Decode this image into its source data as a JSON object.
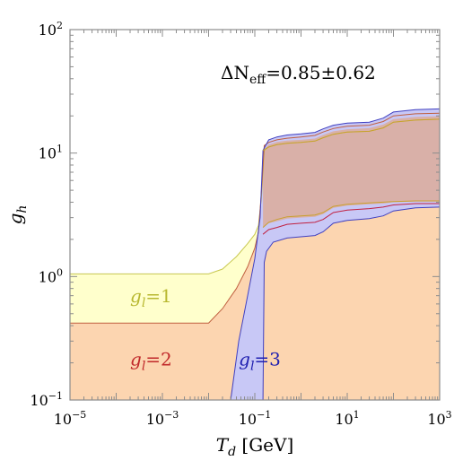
{
  "chart_data": {
    "type": "area",
    "title": "",
    "xlabel": {
      "base": "T",
      "sub": "d",
      "unit": " [GeV]"
    },
    "ylabel": {
      "base": "g",
      "sub": "h"
    },
    "x_scale": "log",
    "y_scale": "log",
    "xlim": [
      1e-05,
      1000
    ],
    "ylim": [
      0.1,
      100
    ],
    "grid": false,
    "x_ticks": [
      {
        "value": 1e-05,
        "base": "10",
        "exp": "−5"
      },
      {
        "value": 0.001,
        "base": "10",
        "exp": "−3"
      },
      {
        "value": 0.1,
        "base": "10",
        "exp": "−1"
      },
      {
        "value": 10,
        "base": "10",
        "exp": "1"
      },
      {
        "value": 1000,
        "base": "10",
        "exp": "3"
      }
    ],
    "y_ticks": [
      {
        "value": 0.1,
        "base": "10",
        "exp": "−1"
      },
      {
        "value": 1,
        "base": "10",
        "exp": "0"
      },
      {
        "value": 10,
        "base": "10",
        "exp": "1"
      },
      {
        "value": 100,
        "base": "10",
        "exp": "2"
      }
    ],
    "annotation": {
      "text": "ΔN",
      "sub": "eff",
      "rest": "=0.85±0.62",
      "x": 0.1,
      "y": 40
    },
    "series": [
      {
        "name": "g_l=1",
        "label": {
          "base": "g",
          "sub": "l",
          "rest": "=1",
          "x": 0.0002,
          "y": 0.62
        },
        "fill": "#ffffcc",
        "stroke": "#c8c850",
        "upper": [
          [
            1e-05,
            1.05
          ],
          [
            0.0001,
            1.05
          ],
          [
            0.001,
            1.05
          ],
          [
            0.01,
            1.05
          ],
          [
            0.02,
            1.15
          ],
          [
            0.04,
            1.45
          ],
          [
            0.07,
            1.85
          ],
          [
            0.1,
            2.2
          ],
          [
            0.12,
            2.6
          ],
          [
            0.14,
            4.5
          ],
          [
            0.16,
            10.5
          ],
          [
            0.2,
            11.2
          ],
          [
            0.3,
            11.7
          ],
          [
            0.5,
            12.0
          ],
          [
            1,
            12.2
          ],
          [
            2,
            12.5
          ],
          [
            3,
            13.3
          ],
          [
            5,
            14.2
          ],
          [
            10,
            14.8
          ],
          [
            30,
            15.0
          ],
          [
            60,
            16.0
          ],
          [
            100,
            17.8
          ],
          [
            300,
            18.5
          ],
          [
            1000,
            18.8
          ]
        ],
        "lower": [
          [
            1e-05,
            0.1
          ],
          [
            1000,
            0.1
          ]
        ]
      },
      {
        "name": "g_l=2",
        "label": {
          "base": "g",
          "sub": "l",
          "rest": "=2",
          "x": 0.0002,
          "y": 0.19
        },
        "fill": "#fcd5b0",
        "stroke": "#c06040",
        "upper": [
          [
            1e-05,
            0.42
          ],
          [
            0.001,
            0.42
          ],
          [
            0.01,
            0.42
          ],
          [
            0.02,
            0.55
          ],
          [
            0.04,
            0.8
          ],
          [
            0.07,
            1.2
          ],
          [
            0.1,
            1.7
          ],
          [
            0.12,
            2.3
          ],
          [
            0.14,
            5.0
          ],
          [
            0.16,
            11.5
          ],
          [
            0.2,
            12.2
          ],
          [
            0.3,
            12.8
          ],
          [
            0.5,
            13.2
          ],
          [
            1,
            13.5
          ],
          [
            2,
            13.9
          ],
          [
            3,
            14.8
          ],
          [
            5,
            15.8
          ],
          [
            10,
            16.5
          ],
          [
            30,
            16.8
          ],
          [
            60,
            18.0
          ],
          [
            100,
            20.0
          ],
          [
            300,
            20.8
          ],
          [
            1000,
            21.0
          ]
        ],
        "lower": [
          [
            1e-05,
            0.1
          ],
          [
            1000,
            0.1
          ]
        ]
      },
      {
        "name": "g_l=3",
        "label": {
          "base": "g",
          "sub": "l",
          "rest": "=3",
          "x": 0.045,
          "y": 0.19
        },
        "fill": "#c8c8f6",
        "stroke": "#4040c0",
        "upper": [
          [
            0.03,
            0.1
          ],
          [
            0.045,
            0.3
          ],
          [
            0.07,
            0.7
          ],
          [
            0.1,
            1.4
          ],
          [
            0.13,
            3.0
          ],
          [
            0.15,
            10.5
          ],
          [
            0.2,
            12.8
          ],
          [
            0.3,
            13.5
          ],
          [
            0.5,
            14.0
          ],
          [
            1,
            14.3
          ],
          [
            2,
            14.7
          ],
          [
            3,
            15.7
          ],
          [
            5,
            16.8
          ],
          [
            10,
            17.5
          ],
          [
            30,
            17.8
          ],
          [
            60,
            19.2
          ],
          [
            100,
            21.5
          ],
          [
            300,
            22.5
          ],
          [
            1000,
            22.8
          ]
        ],
        "lower": [
          [
            0.15,
            0.1
          ],
          [
            0.16,
            1.3
          ],
          [
            0.18,
            1.6
          ],
          [
            0.25,
            1.9
          ],
          [
            0.5,
            2.05
          ],
          [
            1,
            2.1
          ],
          [
            2,
            2.15
          ],
          [
            3,
            2.3
          ],
          [
            5,
            2.7
          ],
          [
            10,
            2.85
          ],
          [
            30,
            2.95
          ],
          [
            60,
            3.1
          ],
          [
            100,
            3.4
          ],
          [
            300,
            3.6
          ],
          [
            1000,
            3.65
          ]
        ]
      }
    ],
    "overlap_fill": "#d9b0a8",
    "overlap_band": {
      "upper": [
        [
          0.15,
          10.5
        ],
        [
          0.2,
          11.7
        ],
        [
          0.3,
          12.3
        ],
        [
          0.5,
          12.6
        ],
        [
          1,
          12.8
        ],
        [
          2,
          13.1
        ],
        [
          3,
          14.0
        ],
        [
          5,
          15.0
        ],
        [
          10,
          15.6
        ],
        [
          30,
          15.9
        ],
        [
          60,
          17.0
        ],
        [
          100,
          18.8
        ],
        [
          300,
          19.6
        ],
        [
          1000,
          19.9
        ]
      ],
      "lower": [
        [
          0.15,
          2.5
        ],
        [
          0.2,
          2.7
        ],
        [
          0.3,
          2.8
        ],
        [
          0.5,
          2.95
        ],
        [
          1,
          3.0
        ],
        [
          2,
          3.05
        ],
        [
          3,
          3.2
        ],
        [
          5,
          3.6
        ],
        [
          10,
          3.75
        ],
        [
          30,
          3.85
        ],
        [
          60,
          3.9
        ],
        [
          100,
          4.0
        ],
        [
          300,
          4.05
        ],
        [
          1000,
          4.05
        ]
      ]
    },
    "overlap_edges": [
      {
        "color": "#c8a030",
        "points": [
          [
            0.15,
            10.5
          ],
          [
            0.2,
            11.2
          ],
          [
            0.3,
            11.7
          ],
          [
            0.5,
            12.0
          ],
          [
            1,
            12.2
          ],
          [
            2,
            12.5
          ],
          [
            3,
            13.3
          ],
          [
            5,
            14.2
          ],
          [
            10,
            14.8
          ],
          [
            30,
            15.0
          ],
          [
            60,
            16.0
          ],
          [
            100,
            17.8
          ],
          [
            300,
            18.5
          ],
          [
            1000,
            18.8
          ]
        ]
      },
      {
        "color": "#c8a030",
        "points": [
          [
            0.15,
            2.5
          ],
          [
            0.2,
            2.75
          ],
          [
            0.3,
            2.9
          ],
          [
            0.5,
            3.05
          ],
          [
            1,
            3.1
          ],
          [
            2,
            3.15
          ],
          [
            3,
            3.3
          ],
          [
            5,
            3.7
          ],
          [
            10,
            3.85
          ],
          [
            30,
            3.95
          ],
          [
            60,
            4.0
          ],
          [
            100,
            4.05
          ],
          [
            300,
            4.1
          ],
          [
            1000,
            4.1
          ]
        ]
      },
      {
        "color": "#c02040",
        "points": [
          [
            0.15,
            2.2
          ],
          [
            0.2,
            2.4
          ],
          [
            0.3,
            2.5
          ],
          [
            0.5,
            2.65
          ],
          [
            1,
            2.7
          ],
          [
            2,
            2.75
          ],
          [
            3,
            2.9
          ],
          [
            5,
            3.3
          ],
          [
            10,
            3.45
          ],
          [
            30,
            3.55
          ],
          [
            60,
            3.65
          ],
          [
            100,
            3.8
          ],
          [
            300,
            3.9
          ],
          [
            1000,
            3.9
          ]
        ]
      }
    ]
  }
}
